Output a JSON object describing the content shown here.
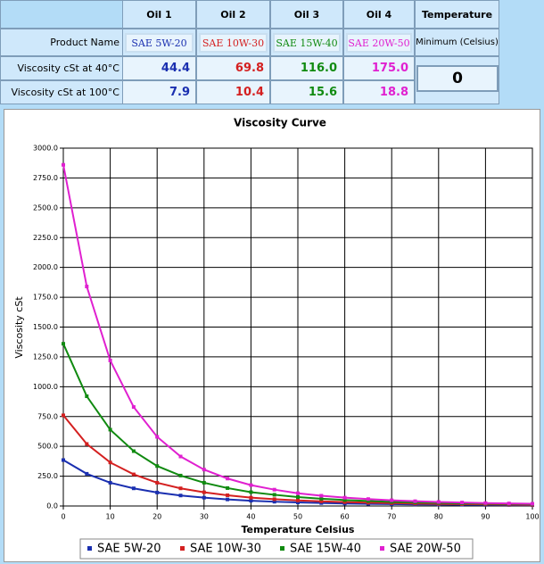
{
  "table": {
    "headers": [
      "Oil 1",
      "Oil 2",
      "Oil 3",
      "Oil 4",
      "Temperature"
    ],
    "rows": [
      {
        "label": "Product Name",
        "cells": [
          "SAE 5W-20",
          "SAE 10W-30",
          "SAE 15W-40",
          "SAE 20W-50"
        ],
        "extra": "Minimum (Celsius)"
      },
      {
        "label": "Viscosity cSt at 40°C",
        "cells": [
          44.4,
          69.8,
          116.0,
          175.0
        ],
        "cell_labels": [
          "44.4",
          "69.8",
          "116.0",
          "175.0"
        ]
      },
      {
        "label": "Viscosity cSt at 100°C",
        "cells": [
          7.9,
          10.4,
          15.6,
          18.8
        ]
      }
    ],
    "colors": [
      "#1a2fb0",
      "#d42020",
      "#108a10",
      "#e020d0"
    ],
    "temperature": 0
  },
  "chart_data": {
    "type": "line",
    "title": "Viscosity Curve",
    "x_label": "Temperature Celsius",
    "y_label": "Viscosity cSt",
    "x": [
      0,
      5,
      10,
      15,
      20,
      25,
      30,
      35,
      40,
      45,
      50,
      55,
      60,
      65,
      70,
      75,
      80,
      85,
      90,
      95,
      100
    ],
    "series": [
      {
        "name": "SAE 5W-20",
        "color": "#1a2fb0",
        "values": [
          385,
          270,
          195,
          148,
          113,
          88,
          70,
          55,
          44.4,
          36,
          30,
          25,
          21,
          18,
          15.5,
          13.5,
          11.8,
          10.4,
          9.3,
          8.5,
          7.9
        ]
      },
      {
        "name": "SAE 10W-30",
        "color": "#d42020",
        "values": [
          760,
          520,
          365,
          265,
          195,
          148,
          115,
          90,
          69.8,
          57,
          47,
          39,
          33,
          28,
          24,
          20.5,
          17.8,
          15.5,
          13.6,
          11.9,
          10.4
        ]
      },
      {
        "name": "SAE 15W-40",
        "color": "#108a10",
        "values": [
          1360,
          920,
          640,
          460,
          335,
          255,
          195,
          150,
          116,
          94,
          75,
          61,
          50,
          42,
          35,
          30,
          26,
          22,
          19.5,
          17.4,
          15.6
        ]
      },
      {
        "name": "SAE 20W-50",
        "color": "#e020d0",
        "values": [
          2860,
          1840,
          1220,
          830,
          580,
          415,
          305,
          230,
          175,
          137,
          107,
          86,
          70,
          58,
          48,
          40,
          34,
          29,
          24.5,
          21.2,
          18.8
        ]
      }
    ],
    "xlim": [
      0,
      100
    ],
    "xticks": [
      0,
      10,
      20,
      30,
      40,
      50,
      60,
      70,
      80,
      90,
      100
    ],
    "ylim": [
      0,
      3000
    ],
    "yticks": [
      {
        "value": 0,
        "label": "0.0"
      },
      {
        "value": 250,
        "label": "250.0"
      },
      {
        "value": 500,
        "label": "500.0"
      },
      {
        "value": 750,
        "label": "750.0"
      },
      {
        "value": 1000,
        "label": "1000.0"
      },
      {
        "value": 1250,
        "label": "1250.0"
      },
      {
        "value": 1500,
        "label": "1500.0"
      },
      {
        "value": 1750,
        "label": "1750.0"
      },
      {
        "value": 2000,
        "label": "2000.0"
      },
      {
        "value": 2250,
        "label": "2250.0"
      },
      {
        "value": 2500,
        "label": "2500.0"
      },
      {
        "value": 2750,
        "label": "2750.0"
      },
      {
        "value": 3000,
        "label": "3000.0"
      }
    ],
    "grid": true,
    "legend": "bottom"
  }
}
